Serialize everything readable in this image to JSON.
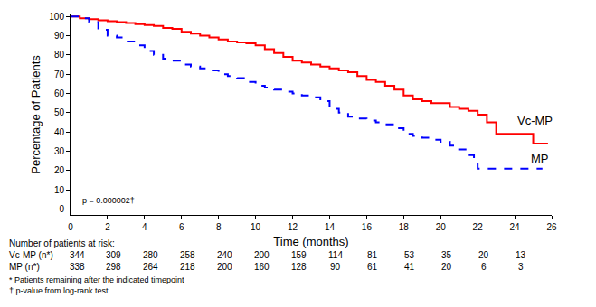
{
  "chart_data": {
    "type": "step",
    "x_label": "Time (months)",
    "y_label": "Percentage of Patients",
    "annotation": "p = 0.000002†",
    "grid": false,
    "xlim": [
      0,
      26
    ],
    "xticks": [
      0,
      2,
      4,
      6,
      8,
      10,
      12,
      14,
      16,
      18,
      20,
      22,
      24,
      26
    ],
    "ylim": [
      -3,
      101
    ],
    "yticks": [
      0,
      10,
      20,
      30,
      40,
      50,
      60,
      70,
      80,
      90,
      100
    ],
    "series": [
      {
        "name": "Vc-MP",
        "color": "#ff0000",
        "line_style": "solid",
        "x": [
          0,
          0.5,
          1,
          1.5,
          2,
          2.5,
          3,
          3.5,
          4,
          4.5,
          5,
          5.5,
          6,
          6.5,
          7,
          7.5,
          8,
          8.5,
          9,
          9.5,
          10,
          10.5,
          11,
          11.5,
          12,
          12.5,
          13,
          13.5,
          14,
          14.5,
          15,
          15.5,
          16,
          16.5,
          17,
          17.5,
          18,
          18.5,
          19,
          19.5,
          20,
          20.5,
          21,
          21.5,
          22,
          22.5,
          23,
          25,
          25.8
        ],
        "values": [
          100,
          99,
          98.5,
          98,
          97.5,
          97,
          96.5,
          96,
          95.5,
          95,
          94,
          93.5,
          92,
          91,
          90,
          89,
          88,
          87,
          86.5,
          86,
          85,
          83,
          81,
          79,
          77,
          76,
          75,
          74,
          73,
          72,
          71,
          69,
          67,
          66,
          64,
          62,
          59,
          57,
          56,
          55,
          55,
          53,
          52,
          51,
          49,
          45,
          39,
          34,
          34
        ]
      },
      {
        "name": "MP",
        "color": "#0000ff",
        "line_style": "dash",
        "x": [
          0,
          0.5,
          1,
          1.5,
          2,
          2.5,
          3,
          3.5,
          4,
          4.5,
          5,
          5.5,
          6,
          6.5,
          7,
          7.5,
          8,
          8.5,
          9,
          9.5,
          10,
          10.5,
          11,
          11.5,
          12,
          12.5,
          13,
          13.5,
          14,
          14.5,
          15,
          15.5,
          16,
          16.5,
          17,
          17.5,
          18,
          18.5,
          19,
          19.5,
          20,
          20.5,
          21,
          21.5,
          21.8,
          22,
          25.5
        ],
        "values": [
          100,
          99,
          97,
          93,
          90,
          89,
          87,
          85,
          82,
          80,
          78,
          77,
          75,
          74,
          73,
          72,
          70,
          69,
          68,
          66,
          64,
          63,
          62,
          61,
          60,
          59,
          58,
          56,
          52,
          50,
          48,
          47,
          46,
          45,
          44,
          42,
          39,
          38,
          37,
          36,
          35,
          33,
          31,
          28,
          25,
          21,
          21
        ]
      }
    ],
    "risk_table": {
      "title": "Number of patients at risk:",
      "times": [
        0,
        2,
        4,
        6,
        8,
        10,
        12,
        14,
        16,
        18,
        20,
        22,
        24
      ],
      "rows": [
        {
          "label": "Vc-MP (n*)",
          "values": [
            344,
            309,
            280,
            258,
            240,
            200,
            159,
            114,
            81,
            53,
            35,
            20,
            13
          ]
        },
        {
          "label": "MP (n*)",
          "values": [
            338,
            298,
            264,
            218,
            200,
            160,
            128,
            90,
            61,
            41,
            20,
            6,
            3
          ]
        }
      ]
    },
    "footnotes": [
      "* Patients remaining after the indicated timepoint",
      "† p-value from log-rank test"
    ]
  }
}
